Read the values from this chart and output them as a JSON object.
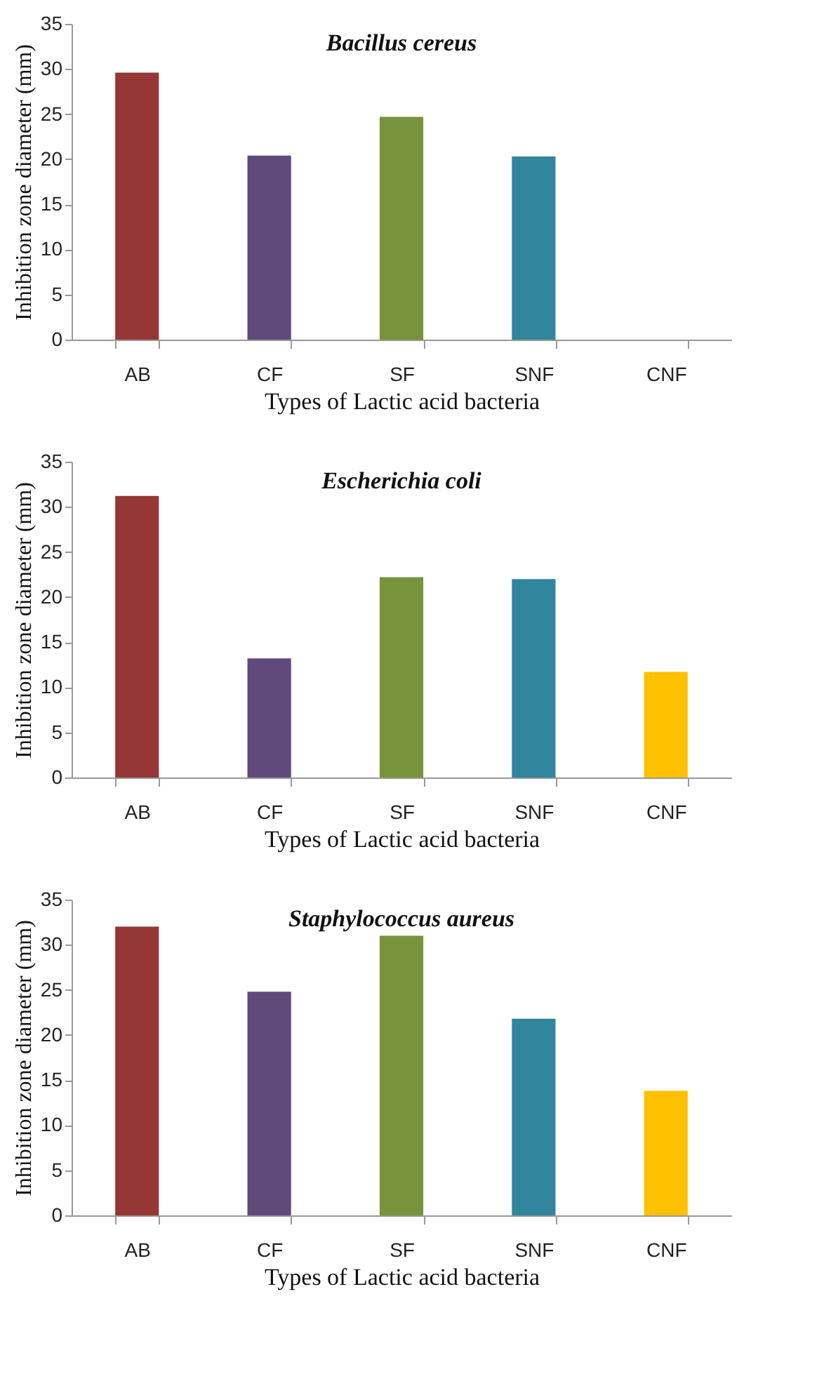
{
  "chart_data": [
    {
      "type": "bar",
      "title": "Bacillus cereus",
      "xlabel": "Types of Lactic acid bacteria",
      "ylabel": "Inhibition zone diameter (mm)",
      "categories": [
        "AB",
        "CF",
        "SF",
        "SNF",
        "CNF"
      ],
      "values": [
        29.6,
        20.4,
        24.7,
        20.3,
        0
      ],
      "colors": [
        "#953735",
        "#604a7b",
        "#77933c",
        "#31859c",
        "#ffc000"
      ],
      "ylim": [
        0,
        35
      ],
      "yticks": [
        0,
        5,
        10,
        15,
        20,
        25,
        30,
        35
      ],
      "grid": false
    },
    {
      "type": "bar",
      "title": "Escherichia coli",
      "xlabel": "Types of Lactic acid bacteria",
      "ylabel": "Inhibition zone diameter (mm)",
      "categories": [
        "AB",
        "CF",
        "SF",
        "SNF",
        "CNF"
      ],
      "values": [
        31.2,
        13.2,
        22.2,
        22.0,
        11.7
      ],
      "colors": [
        "#953735",
        "#604a7b",
        "#77933c",
        "#31859c",
        "#ffc000"
      ],
      "ylim": [
        0,
        35
      ],
      "yticks": [
        0,
        5,
        10,
        15,
        20,
        25,
        30,
        35
      ],
      "grid": false
    },
    {
      "type": "bar",
      "title": "Staphylococcus aureus",
      "xlabel": "Types of Lactic acid bacteria",
      "ylabel": "Inhibition zone diameter (mm)",
      "categories": [
        "AB",
        "CF",
        "SF",
        "SNF",
        "CNF"
      ],
      "values": [
        32.0,
        24.8,
        31.0,
        21.8,
        13.8
      ],
      "colors": [
        "#953735",
        "#604a7b",
        "#77933c",
        "#31859c",
        "#ffc000"
      ],
      "ylim": [
        0,
        35
      ],
      "yticks": [
        0,
        5,
        10,
        15,
        20,
        25,
        30,
        35
      ],
      "grid": false
    }
  ]
}
